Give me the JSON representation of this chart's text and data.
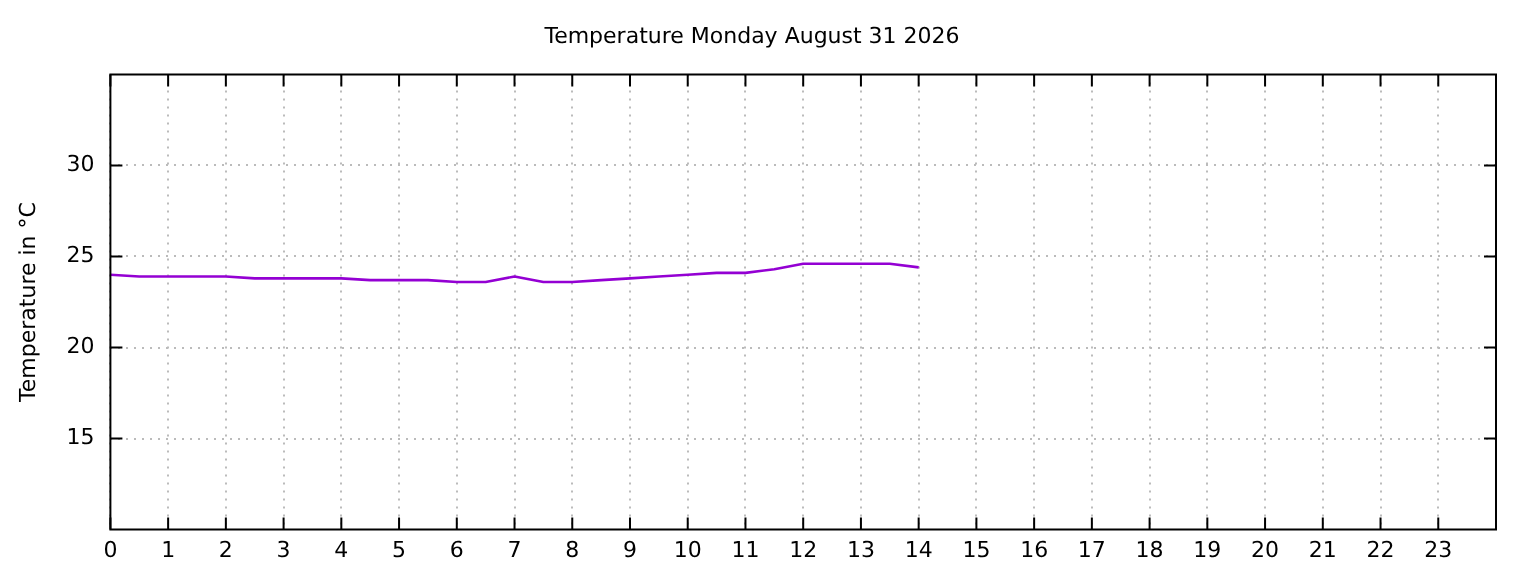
{
  "chart_data": {
    "type": "line",
    "title": "Temperature Monday August 31 2026",
    "ylabel": "Temperature in °C",
    "x": [
      0,
      0.5,
      1,
      1.5,
      2,
      2.5,
      3,
      3.5,
      4,
      4.5,
      5,
      5.5,
      6,
      6.5,
      7,
      7.5,
      8,
      8.5,
      9,
      9.5,
      10,
      10.5,
      11,
      11.5,
      12,
      12.5,
      13,
      13.5,
      14
    ],
    "series": [
      {
        "color": "#9400d3",
        "values": [
          24.0,
          23.9,
          23.9,
          23.9,
          23.9,
          23.8,
          23.8,
          23.8,
          23.8,
          23.7,
          23.7,
          23.7,
          23.6,
          23.6,
          23.9,
          23.6,
          23.6,
          23.7,
          23.8,
          23.9,
          24.0,
          24.1,
          24.1,
          24.3,
          24.6,
          24.6,
          24.6,
          24.6,
          24.4
        ]
      }
    ],
    "xlim": [
      0,
      24
    ],
    "xticks": [
      0,
      1,
      2,
      3,
      4,
      5,
      6,
      7,
      8,
      9,
      10,
      11,
      12,
      13,
      14,
      15,
      16,
      17,
      18,
      19,
      20,
      21,
      22,
      23
    ],
    "ylim": [
      10,
      35
    ],
    "yticks": [
      15,
      20,
      25,
      30
    ],
    "grid": true,
    "legend": false,
    "marker": "none",
    "line_style": "solid"
  }
}
